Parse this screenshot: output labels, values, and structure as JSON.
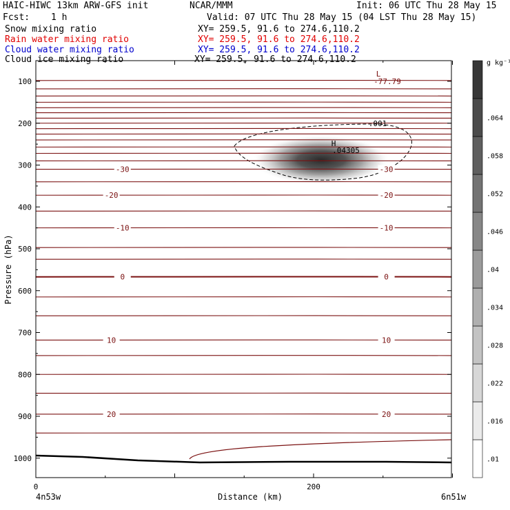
{
  "header": {
    "title_left": "HAIC-HIWC 13km ARW-GFS init",
    "center": "NCAR/MMM",
    "init": "Init: 06 UTC Thu 28 May 15",
    "fcst_label": "Fcst:",
    "fcst_value": "1 h",
    "valid": "Valid: 07 UTC Thu 28 May 15 (04 LST Thu 28 May 15)"
  },
  "fields": [
    {
      "name": "Snow mixing ratio",
      "xy": "XY= 259.5, 91.6 to 274.6,110.2",
      "color": "#000000"
    },
    {
      "name": "Rain water mixing ratio",
      "xy": "XY= 259.5, 91.6 to 274.6,110.2",
      "color": "#e00000"
    },
    {
      "name": "Cloud water mixing ratio",
      "xy": "XY= 259.5, 91.6 to 274.6,110.2",
      "color": "#0000cc"
    },
    {
      "name": "Cloud ice mixing ratio",
      "xy": "XY= 259.5, 91.6 to 274.6,110.2",
      "color": "#000000"
    }
  ],
  "chart_data": {
    "type": "heatmap",
    "xlabel": "Distance (km)",
    "ylabel": "Pressure (hPa)",
    "xlim": [
      0,
      300
    ],
    "ylim": [
      1050,
      50
    ],
    "x_ticks": [
      "0",
      "200"
    ],
    "y_ticks": [
      "100",
      "200",
      "300",
      "400",
      "500",
      "600",
      "700",
      "800",
      "900",
      "1000"
    ],
    "left_endpoint": "4n53w",
    "right_endpoint": "6n51w",
    "colorbar": {
      "unit": "g kg⁻¹",
      "levels": [
        ".01",
        ".016",
        ".022",
        ".028",
        ".034",
        ".04",
        ".046",
        ".052",
        ".058",
        ".064"
      ]
    },
    "shading": {
      "max_label": "H",
      "max_value": ".04305",
      "max_location": {
        "x": 213,
        "p": 265
      },
      "contour_label": ".001"
    },
    "temperature_minimum": {
      "label": "L",
      "value": "-77.79",
      "location": {
        "x": 245,
        "p": 90
      }
    },
    "isotherm_labels": [
      {
        "value": "-30",
        "x": [
          50,
          240
        ],
        "p": 310
      },
      {
        "value": "-20",
        "x": [
          42,
          240
        ],
        "p": 372
      },
      {
        "value": "-10",
        "x": [
          50,
          240
        ],
        "p": 450
      },
      {
        "value": "0",
        "x": [
          50,
          240
        ],
        "p": 567
      },
      {
        "value": "10",
        "x": [
          42,
          240
        ],
        "p": 718
      },
      {
        "value": "20",
        "x": [
          42,
          240
        ],
        "p": 895
      }
    ]
  }
}
